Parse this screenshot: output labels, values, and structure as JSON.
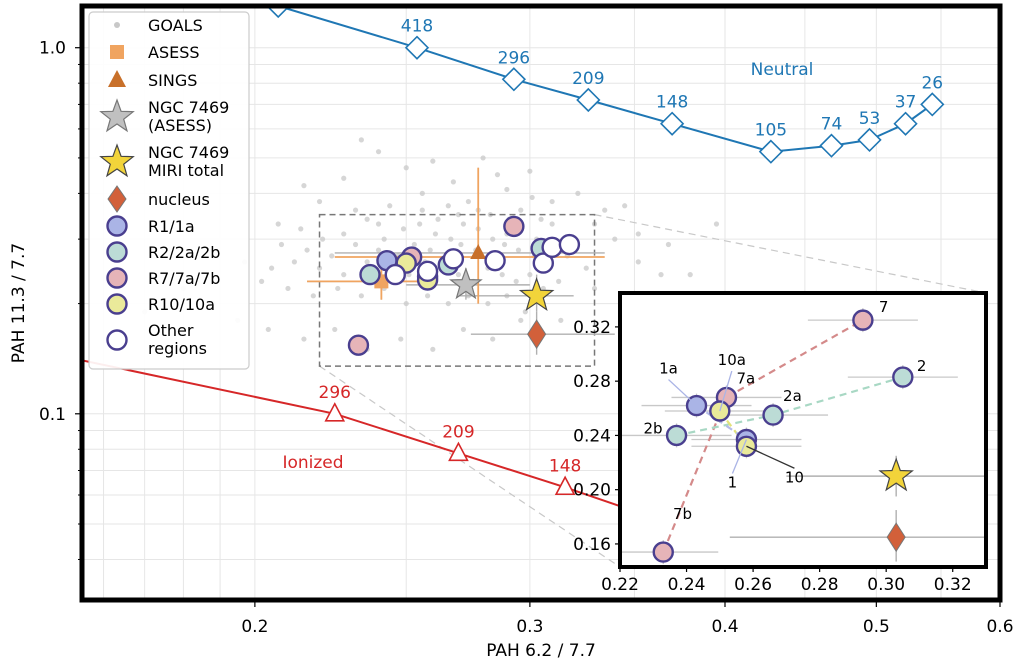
{
  "chart_data": {
    "type": "scatter",
    "xlabel": "PAH 6.2 / 7.7",
    "ylabel": "PAH 11.3 / 7.7",
    "x_scale": "log",
    "y_scale": "log",
    "xlim": [
      0.155,
      0.6
    ],
    "ylim": [
      0.031,
      1.3
    ],
    "x_ticks": [
      {
        "v": 0.2,
        "label": "0.2"
      },
      {
        "v": 0.3,
        "label": "0.3"
      },
      {
        "v": 0.4,
        "label": "0.4"
      },
      {
        "v": 0.5,
        "label": "0.5"
      },
      {
        "v": 0.6,
        "label": "0.6"
      }
    ],
    "y_ticks": [
      {
        "v": 0.1,
        "label": "0.1"
      },
      {
        "v": 1.0,
        "label": "1.0"
      }
    ],
    "grid": true,
    "colors": {
      "neutral": "#1f77b4",
      "ionized": "#d62728",
      "goals": "#c8c8c8",
      "asess": "#f0a460",
      "sings": "#c8702a",
      "star_asess": "#c0c0c0",
      "star_miri": "#f2d43a",
      "nucleus": "#d2603a",
      "r1": "#aab4e6",
      "r2": "#bcdcd6",
      "r7": "#e6b4b8",
      "r10": "#eaea9a",
      "ring": "#4a3f8f",
      "errbar": "#b0b0b0"
    },
    "neutral_track": {
      "name": "Neutral",
      "points": [
        {
          "x": 0.207,
          "y": 1.3,
          "label": ""
        },
        {
          "x": 0.254,
          "y": 1.0,
          "label": "418"
        },
        {
          "x": 0.293,
          "y": 0.82,
          "label": "296"
        },
        {
          "x": 0.327,
          "y": 0.72,
          "label": "209"
        },
        {
          "x": 0.37,
          "y": 0.62,
          "label": "148"
        },
        {
          "x": 0.428,
          "y": 0.52,
          "label": "105"
        },
        {
          "x": 0.468,
          "y": 0.54,
          "label": "74"
        },
        {
          "x": 0.495,
          "y": 0.56,
          "label": "53"
        },
        {
          "x": 0.522,
          "y": 0.62,
          "label": "37"
        },
        {
          "x": 0.543,
          "y": 0.7,
          "label": "26"
        }
      ]
    },
    "ionized_track": {
      "name": "Ionized",
      "points": [
        {
          "x": 0.155,
          "y": 0.14,
          "label": ""
        },
        {
          "x": 0.225,
          "y": 0.1,
          "label": "296"
        },
        {
          "x": 0.27,
          "y": 0.078,
          "label": "209"
        },
        {
          "x": 0.316,
          "y": 0.063,
          "label": "148"
        },
        {
          "x": 0.37,
          "y": 0.05,
          "label": ""
        }
      ]
    },
    "goals": [
      [
        0.215,
        0.42
      ],
      [
        0.228,
        0.44
      ],
      [
        0.24,
        0.52
      ],
      [
        0.25,
        0.47
      ],
      [
        0.26,
        0.49
      ],
      [
        0.268,
        0.43
      ],
      [
        0.28,
        0.5
      ],
      [
        0.29,
        0.41
      ],
      [
        0.3,
        0.46
      ],
      [
        0.31,
        0.38
      ],
      [
        0.322,
        0.4
      ],
      [
        0.335,
        0.36
      ],
      [
        0.345,
        0.37
      ],
      [
        0.232,
        0.36
      ],
      [
        0.244,
        0.37
      ],
      [
        0.256,
        0.4
      ],
      [
        0.262,
        0.34
      ],
      [
        0.274,
        0.38
      ],
      [
        0.283,
        0.35
      ],
      [
        0.296,
        0.36
      ],
      [
        0.207,
        0.33
      ],
      [
        0.214,
        0.32
      ],
      [
        0.221,
        0.3
      ],
      [
        0.228,
        0.31
      ],
      [
        0.236,
        0.34
      ],
      [
        0.242,
        0.3
      ],
      [
        0.249,
        0.32
      ],
      [
        0.255,
        0.33
      ],
      [
        0.261,
        0.31
      ],
      [
        0.267,
        0.3
      ],
      [
        0.272,
        0.33
      ],
      [
        0.278,
        0.32
      ],
      [
        0.284,
        0.3
      ],
      [
        0.29,
        0.31
      ],
      [
        0.296,
        0.32
      ],
      [
        0.303,
        0.3
      ],
      [
        0.31,
        0.33
      ],
      [
        0.318,
        0.29
      ],
      [
        0.208,
        0.29
      ],
      [
        0.216,
        0.28
      ],
      [
        0.224,
        0.27
      ],
      [
        0.232,
        0.29
      ],
      [
        0.24,
        0.28
      ],
      [
        0.247,
        0.27
      ],
      [
        0.253,
        0.29
      ],
      [
        0.259,
        0.28
      ],
      [
        0.265,
        0.27
      ],
      [
        0.271,
        0.29
      ],
      [
        0.277,
        0.28
      ],
      [
        0.283,
        0.27
      ],
      [
        0.289,
        0.29
      ],
      [
        0.295,
        0.28
      ],
      [
        0.302,
        0.27
      ],
      [
        0.309,
        0.26
      ],
      [
        0.317,
        0.27
      ],
      [
        0.326,
        0.25
      ],
      [
        0.212,
        0.26
      ],
      [
        0.22,
        0.25
      ],
      [
        0.228,
        0.24
      ],
      [
        0.236,
        0.26
      ],
      [
        0.244,
        0.25
      ],
      [
        0.251,
        0.24
      ],
      [
        0.257,
        0.26
      ],
      [
        0.263,
        0.25
      ],
      [
        0.27,
        0.24
      ],
      [
        0.276,
        0.23
      ],
      [
        0.282,
        0.25
      ],
      [
        0.288,
        0.24
      ],
      [
        0.294,
        0.23
      ],
      [
        0.3,
        0.24
      ],
      [
        0.306,
        0.22
      ],
      [
        0.313,
        0.23
      ],
      [
        0.202,
        0.23
      ],
      [
        0.21,
        0.22
      ],
      [
        0.218,
        0.21
      ],
      [
        0.226,
        0.22
      ],
      [
        0.234,
        0.21
      ],
      [
        0.242,
        0.22
      ],
      [
        0.25,
        0.2
      ],
      [
        0.258,
        0.21
      ],
      [
        0.266,
        0.2
      ],
      [
        0.274,
        0.21
      ],
      [
        0.282,
        0.2
      ],
      [
        0.29,
        0.21
      ],
      [
        0.298,
        0.19
      ],
      [
        0.306,
        0.2
      ],
      [
        0.314,
        0.18
      ],
      [
        0.188,
        0.2
      ],
      [
        0.195,
        0.18
      ],
      [
        0.204,
        0.17
      ],
      [
        0.215,
        0.16
      ],
      [
        0.225,
        0.17
      ],
      [
        0.236,
        0.15
      ],
      [
        0.248,
        0.16
      ],
      [
        0.26,
        0.15
      ],
      [
        0.272,
        0.17
      ],
      [
        0.284,
        0.16
      ],
      [
        0.296,
        0.18
      ],
      [
        0.33,
        0.22
      ],
      [
        0.345,
        0.2
      ],
      [
        0.36,
        0.21
      ],
      [
        0.38,
        0.24
      ],
      [
        0.395,
        0.33
      ],
      [
        0.368,
        0.29
      ],
      [
        0.352,
        0.31
      ],
      [
        0.34,
        0.3
      ],
      [
        0.234,
        0.56
      ],
      [
        0.301,
        0.39
      ],
      [
        0.286,
        0.45
      ],
      [
        0.27,
        0.35
      ],
      [
        0.22,
        0.38
      ],
      [
        0.205,
        0.25
      ],
      [
        0.197,
        0.26
      ],
      [
        0.18,
        0.22
      ],
      [
        0.17,
        0.19
      ],
      [
        0.352,
        0.26
      ],
      [
        0.364,
        0.24
      ],
      [
        0.33,
        0.33
      ],
      [
        0.24,
        0.33
      ],
      [
        0.256,
        0.36
      ],
      [
        0.266,
        0.37
      ],
      [
        0.278,
        0.36
      ],
      [
        0.291,
        0.34
      ],
      [
        0.305,
        0.34
      ]
    ],
    "asess": {
      "x": 0.241,
      "y": 0.23,
      "xerr": [
        0.216,
        0.262
      ],
      "yerr": [
        0.205,
        0.26
      ]
    },
    "sings": {
      "x": 0.278,
      "y": 0.275,
      "xerr": [
        0.225,
        0.335
      ],
      "yerr": [
        0.2,
        0.47
      ]
    },
    "ngc7469_asess": {
      "x": 0.273,
      "y": 0.225,
      "xerr": [
        0.25,
        0.3
      ],
      "yerr": [
        0.205,
        0.25
      ]
    },
    "ngc7469_miri": {
      "x": 0.303,
      "y": 0.21,
      "xerr": [
        0.27,
        0.32
      ],
      "yerr": [
        0.19,
        0.24
      ]
    },
    "nucleus": {
      "x": 0.303,
      "y": 0.165,
      "xerr": [
        0.275,
        0.34
      ],
      "yerr": [
        0.145,
        0.19
      ]
    },
    "regions": [
      {
        "name": "1a",
        "group": "r1",
        "x": 0.243,
        "y": 0.262
      },
      {
        "name": "1",
        "group": "r1",
        "x": 0.258,
        "y": 0.237
      },
      {
        "name": "2",
        "group": "r2",
        "x": 0.305,
        "y": 0.283
      },
      {
        "name": "2a",
        "group": "r2",
        "x": 0.266,
        "y": 0.255
      },
      {
        "name": "2b",
        "group": "r2",
        "x": 0.237,
        "y": 0.24
      },
      {
        "name": "7",
        "group": "r7",
        "x": 0.293,
        "y": 0.325
      },
      {
        "name": "7a",
        "group": "r7",
        "x": 0.252,
        "y": 0.268
      },
      {
        "name": "7b",
        "group": "r7",
        "x": 0.233,
        "y": 0.154
      },
      {
        "name": "10",
        "group": "r10",
        "x": 0.258,
        "y": 0.232
      },
      {
        "name": "10a",
        "group": "r10",
        "x": 0.25,
        "y": 0.258
      },
      {
        "name": "",
        "group": "other",
        "x": 0.268,
        "y": 0.265
      },
      {
        "name": "",
        "group": "other",
        "x": 0.285,
        "y": 0.262
      },
      {
        "name": "",
        "group": "other",
        "x": 0.306,
        "y": 0.258
      },
      {
        "name": "",
        "group": "other",
        "x": 0.31,
        "y": 0.285
      },
      {
        "name": "",
        "group": "other",
        "x": 0.318,
        "y": 0.29
      },
      {
        "name": "",
        "group": "other",
        "x": 0.258,
        "y": 0.245
      },
      {
        "name": "",
        "group": "other",
        "x": 0.246,
        "y": 0.24
      }
    ],
    "zoom_box": {
      "xlim": [
        0.22,
        0.33
      ],
      "ylim": [
        0.135,
        0.35
      ]
    },
    "inset": {
      "xlim": [
        0.22,
        0.33
      ],
      "ylim": [
        0.143,
        0.345
      ],
      "x_ticks": [
        {
          "v": 0.22,
          "label": "0.22"
        },
        {
          "v": 0.24,
          "label": "0.24"
        },
        {
          "v": 0.26,
          "label": "0.26"
        },
        {
          "v": 0.28,
          "label": "0.28"
        },
        {
          "v": 0.3,
          "label": "0.30"
        },
        {
          "v": 0.32,
          "label": "0.32"
        }
      ],
      "y_ticks": [
        {
          "v": 0.16,
          "label": "0.16"
        },
        {
          "v": 0.2,
          "label": "0.20"
        },
        {
          "v": 0.24,
          "label": "0.24"
        },
        {
          "v": 0.28,
          "label": "0.28"
        },
        {
          "v": 0.32,
          "label": "0.32"
        }
      ]
    },
    "legend": {
      "position": "upper-left",
      "entries": [
        {
          "key": "goals",
          "label": "GOALS"
        },
        {
          "key": "asess",
          "label": "ASESS"
        },
        {
          "key": "sings",
          "label": "SINGS"
        },
        {
          "key": "star_asess",
          "label": "NGC 7469",
          "label2": "(ASESS)"
        },
        {
          "key": "star_miri",
          "label": "NGC 7469",
          "label2": "MIRI total"
        },
        {
          "key": "nucleus",
          "label": "nucleus"
        },
        {
          "key": "r1",
          "label": "R1/1a"
        },
        {
          "key": "r2",
          "label": "R2/2a/2b"
        },
        {
          "key": "r7",
          "label": "R7/7a/7b"
        },
        {
          "key": "r10",
          "label": "R10/10a"
        },
        {
          "key": "other",
          "label": "Other",
          "label2": "regions"
        }
      ]
    }
  }
}
